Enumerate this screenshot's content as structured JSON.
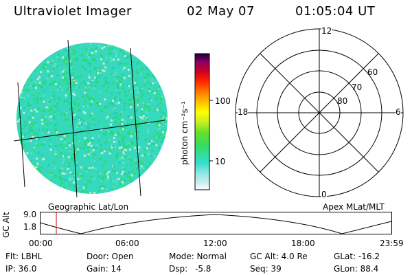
{
  "header": {
    "instrument": "Ultraviolet Imager",
    "date": "02 May 07",
    "time": "01:05:04 UT"
  },
  "colorbar": {
    "unit_label": "photon cm⁻²s⁻¹",
    "ticks": [
      "100",
      "10"
    ]
  },
  "image_panel": {
    "label": "Geographic Lat/Lon"
  },
  "polar_panel": {
    "label": "Apex MLat/MLT",
    "mlt_labels": {
      "top": "12",
      "left": "18",
      "right": "6",
      "bottom": "0"
    },
    "lat_labels": [
      "60",
      "70",
      "80"
    ]
  },
  "altitude_plot": {
    "ylabel": "GC Alt",
    "y_ticks": [
      "9.0",
      "1.8"
    ],
    "x_ticks": [
      "00:00",
      "06:00",
      "12:00",
      "18:00",
      "23:59"
    ]
  },
  "info": {
    "filter": "Flt: LBHL",
    "ip": "IP: 36.0",
    "door": "Door: Open",
    "gain": "Gain: 14",
    "mode": "Mode: Normal",
    "dsp": "Dsp:",
    "dsp_value": "-5.8",
    "gc_alt": "GC Alt: 4.0 Re",
    "seq": "Seq: 39",
    "glat": "GLat: -16.2",
    "glon": "GLon: 88.4"
  },
  "colors": {
    "main_fill": "#33d6b8",
    "highlight": "#2bdc60",
    "noise": "#c8ead8",
    "marker": "#cc0000"
  }
}
